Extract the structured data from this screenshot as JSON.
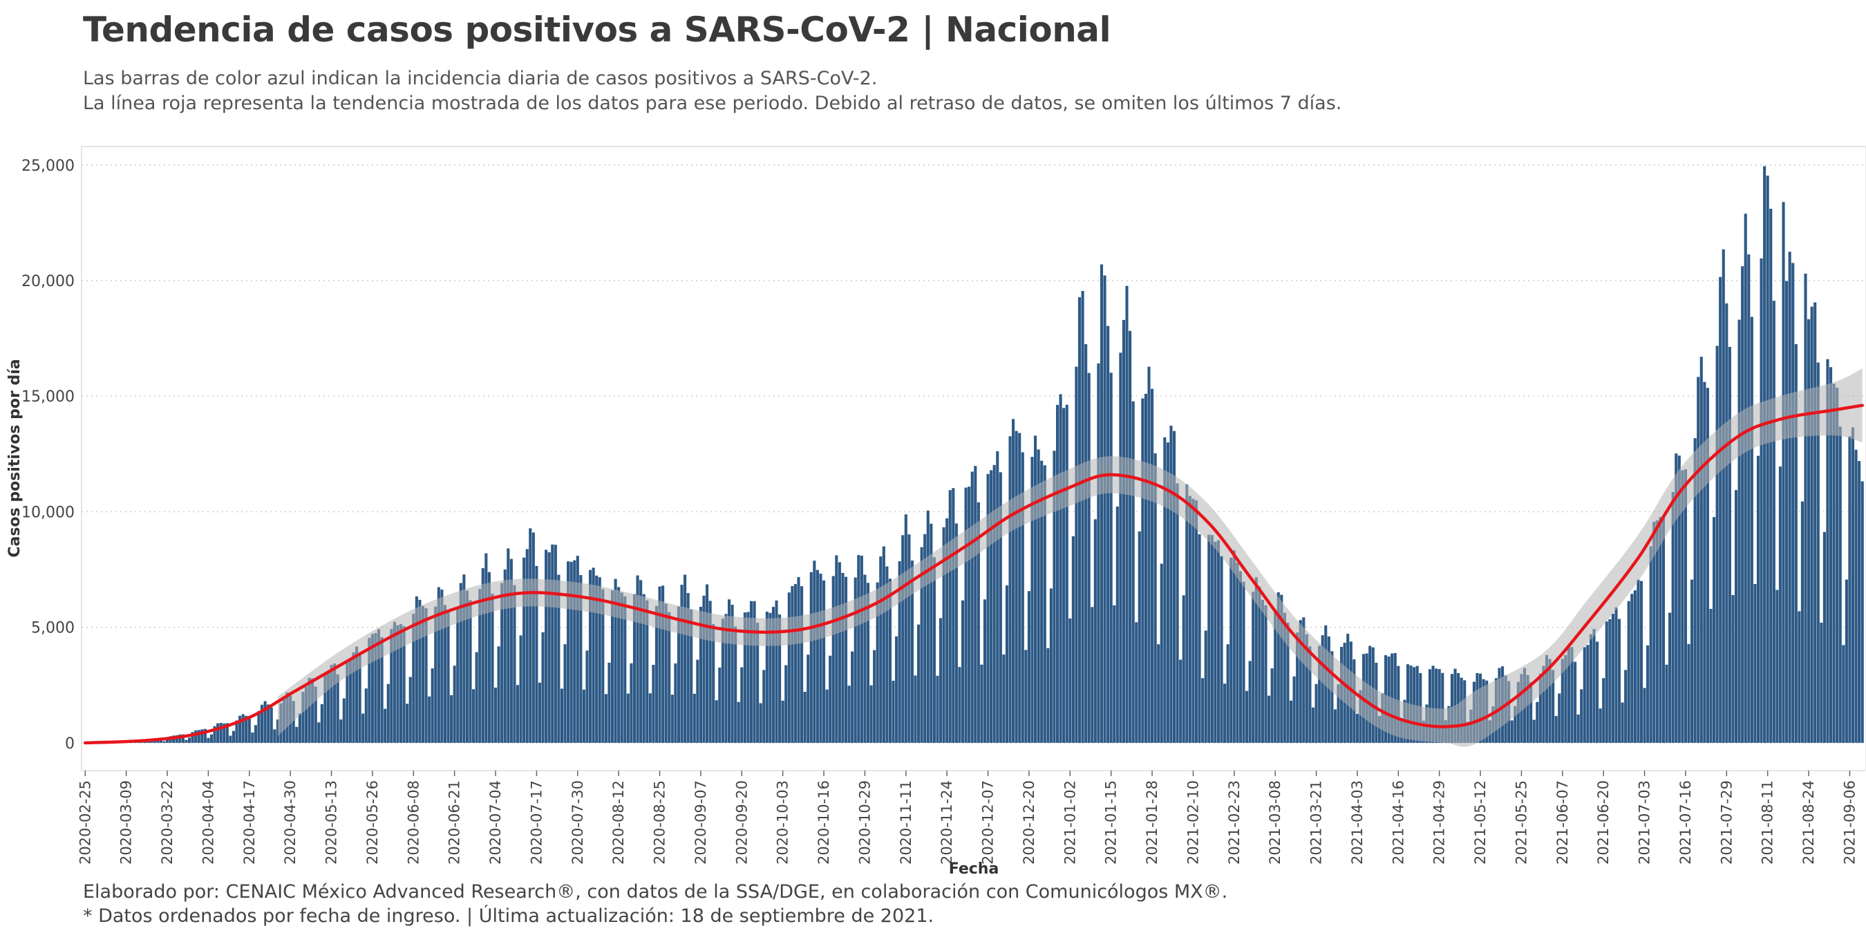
{
  "header": {
    "title": "Tendencia de casos positivos a SARS-CoV-2 | Nacional",
    "subtitle_line1": "Las barras de color azul indican la incidencia diaria de casos positivos a SARS-CoV-2.",
    "subtitle_line2": "La línea roja representa la tendencia mostrada de los datos para ese periodo. Debido al retraso de datos, se omiten los últimos 7 días."
  },
  "footer": {
    "credit": "Elaborado por: CENAIC México Advanced Research®, con datos de la SSA/DGE, en colaboración con Comunicólogos MX®.",
    "note": "* Datos ordenados por fecha de ingreso. | Última actualización: 18 de septiembre de 2021."
  },
  "colors": {
    "bars": "#2d5986",
    "trend": "#e8141b",
    "band": "#b4b4b4",
    "grid": "#cccccc",
    "panel_border": "#e6e6e6"
  },
  "chart_data": {
    "type": "bar",
    "xlabel": "Fecha",
    "ylabel": "Casos positivos por día",
    "ylim": [
      -1200,
      25800
    ],
    "yticks": [
      0,
      5000,
      10000,
      15000,
      20000,
      25000
    ],
    "ytick_labels": [
      "0",
      "5,000",
      "10,000",
      "15,000",
      "20,000",
      "25,000"
    ],
    "x_start": "2020-02-25",
    "x_end": "2021-09-10",
    "xticks": [
      "2020-02-25",
      "2020-03-09",
      "2020-03-22",
      "2020-04-04",
      "2020-04-17",
      "2020-04-30",
      "2020-05-13",
      "2020-05-26",
      "2020-06-08",
      "2020-06-21",
      "2020-07-04",
      "2020-07-17",
      "2020-07-30",
      "2020-08-12",
      "2020-08-25",
      "2020-09-07",
      "2020-09-20",
      "2020-10-03",
      "2020-10-16",
      "2020-10-29",
      "2020-11-11",
      "2020-11-24",
      "2020-12-07",
      "2020-12-20",
      "2021-01-02",
      "2021-01-15",
      "2021-01-28",
      "2021-02-10",
      "2021-02-23",
      "2021-03-08",
      "2021-03-21",
      "2021-04-03",
      "2021-04-16",
      "2021-04-29",
      "2021-05-12",
      "2021-05-25",
      "2021-06-07",
      "2021-06-20",
      "2021-07-03",
      "2021-07-16",
      "2021-07-29",
      "2021-08-11",
      "2021-08-24",
      "2021-09-06"
    ],
    "series": [
      {
        "type": "bar",
        "weekly_points": [
          [
            "2020-02-25",
            10
          ],
          [
            "2020-03-03",
            20
          ],
          [
            "2020-03-10",
            60
          ],
          [
            "2020-03-17",
            140
          ],
          [
            "2020-03-24",
            300
          ],
          [
            "2020-03-31",
            500
          ],
          [
            "2020-04-07",
            750
          ],
          [
            "2020-04-14",
            1100
          ],
          [
            "2020-04-21",
            1500
          ],
          [
            "2020-04-28",
            1900
          ],
          [
            "2020-05-05",
            2400
          ],
          [
            "2020-05-12",
            3000
          ],
          [
            "2020-05-19",
            3700
          ],
          [
            "2020-05-26",
            4400
          ],
          [
            "2020-06-02",
            5000
          ],
          [
            "2020-06-09",
            5700
          ],
          [
            "2020-06-16",
            6100
          ],
          [
            "2020-06-23",
            6500
          ],
          [
            "2020-06-30",
            7000
          ],
          [
            "2020-07-07",
            7600
          ],
          [
            "2020-07-14",
            8200
          ],
          [
            "2020-07-21",
            8300
          ],
          [
            "2020-07-28",
            7700
          ],
          [
            "2020-08-04",
            7000
          ],
          [
            "2020-08-11",
            6700
          ],
          [
            "2020-08-18",
            6400
          ],
          [
            "2020-08-25",
            6300
          ],
          [
            "2020-09-01",
            6400
          ],
          [
            "2020-09-08",
            6100
          ],
          [
            "2020-09-15",
            5700
          ],
          [
            "2020-09-22",
            5500
          ],
          [
            "2020-09-29",
            5700
          ],
          [
            "2020-10-06",
            6400
          ],
          [
            "2020-10-13",
            7300
          ],
          [
            "2020-10-20",
            7500
          ],
          [
            "2020-10-27",
            7200
          ],
          [
            "2020-11-03",
            7700
          ],
          [
            "2020-11-10",
            8400
          ],
          [
            "2020-11-17",
            9000
          ],
          [
            "2020-11-24",
            9800
          ],
          [
            "2020-12-01",
            10800
          ],
          [
            "2020-12-08",
            11800
          ],
          [
            "2020-12-15",
            12800
          ],
          [
            "2020-12-22",
            12400
          ],
          [
            "2020-12-29",
            13200
          ],
          [
            "2021-01-05",
            17500
          ],
          [
            "2021-01-12",
            18300
          ],
          [
            "2021-01-19",
            17300
          ],
          [
            "2021-01-26",
            15500
          ],
          [
            "2021-02-02",
            12800
          ],
          [
            "2021-02-09",
            10500
          ],
          [
            "2021-02-16",
            8700
          ],
          [
            "2021-02-23",
            7500
          ],
          [
            "2021-03-02",
            6700
          ],
          [
            "2021-03-09",
            5800
          ],
          [
            "2021-03-16",
            5000
          ],
          [
            "2021-03-23",
            4500
          ],
          [
            "2021-03-30",
            4200
          ],
          [
            "2021-04-06",
            4000
          ],
          [
            "2021-04-13",
            3600
          ],
          [
            "2021-04-20",
            3300
          ],
          [
            "2021-04-27",
            3100
          ],
          [
            "2021-05-04",
            2900
          ],
          [
            "2021-05-11",
            2800
          ],
          [
            "2021-05-18",
            2900
          ],
          [
            "2021-05-25",
            2900
          ],
          [
            "2021-06-01",
            3200
          ],
          [
            "2021-06-08",
            3800
          ],
          [
            "2021-06-15",
            4300
          ],
          [
            "2021-06-22",
            5100
          ],
          [
            "2021-06-29",
            6300
          ],
          [
            "2021-07-06",
            8600
          ],
          [
            "2021-07-13",
            11500
          ],
          [
            "2021-07-20",
            14500
          ],
          [
            "2021-07-27",
            18500
          ],
          [
            "2021-08-03",
            20500
          ],
          [
            "2021-08-10",
            21500
          ],
          [
            "2021-08-17",
            20500
          ],
          [
            "2021-08-24",
            18000
          ],
          [
            "2021-08-31",
            15500
          ],
          [
            "2021-09-07",
            13000
          ],
          [
            "2021-09-10",
            11500
          ]
        ],
        "weekday_factors": [
          0.55,
          0.98,
          1.05,
          1.08,
          1.03,
          0.93,
          0.32
        ],
        "notable_values": [
          [
            "2021-01-12",
            20700
          ],
          [
            "2021-08-10",
            24950
          ],
          [
            "2021-08-16",
            23400
          ],
          [
            "2021-08-23",
            20300
          ]
        ]
      },
      {
        "type": "line",
        "name": "tendencia",
        "points": [
          [
            "2020-02-25",
            0
          ],
          [
            "2020-03-15",
            100
          ],
          [
            "2020-04-01",
            400
          ],
          [
            "2020-04-17",
            1100
          ],
          [
            "2020-05-01",
            2200
          ],
          [
            "2020-05-15",
            3300
          ],
          [
            "2020-06-01",
            4600
          ],
          [
            "2020-06-15",
            5500
          ],
          [
            "2020-07-01",
            6200
          ],
          [
            "2020-07-15",
            6500
          ],
          [
            "2020-08-01",
            6300
          ],
          [
            "2020-08-15",
            5900
          ],
          [
            "2020-09-01",
            5300
          ],
          [
            "2020-09-15",
            4900
          ],
          [
            "2020-10-01",
            4800
          ],
          [
            "2020-10-15",
            5100
          ],
          [
            "2020-11-01",
            6000
          ],
          [
            "2020-11-15",
            7200
          ],
          [
            "2020-12-01",
            8600
          ],
          [
            "2020-12-15",
            9900
          ],
          [
            "2021-01-01",
            11000
          ],
          [
            "2021-01-15",
            11600
          ],
          [
            "2021-02-01",
            11000
          ],
          [
            "2021-02-15",
            9500
          ],
          [
            "2021-03-01",
            7000
          ],
          [
            "2021-03-15",
            4500
          ],
          [
            "2021-04-01",
            2300
          ],
          [
            "2021-04-15",
            1100
          ],
          [
            "2021-05-01",
            700
          ],
          [
            "2021-05-15",
            1200
          ],
          [
            "2021-06-01",
            3000
          ],
          [
            "2021-06-15",
            5200
          ],
          [
            "2021-07-01",
            8000
          ],
          [
            "2021-07-15",
            11000
          ],
          [
            "2021-08-01",
            13200
          ],
          [
            "2021-08-15",
            14000
          ],
          [
            "2021-09-01",
            14400
          ],
          [
            "2021-09-10",
            14600
          ]
        ],
        "confidence_band": [
          [
            "2020-04-26",
            300,
            2000
          ],
          [
            "2020-05-15",
            2600,
            3900
          ],
          [
            "2020-06-01",
            3900,
            5300
          ],
          [
            "2020-06-15",
            4800,
            6200
          ],
          [
            "2020-07-01",
            5600,
            6900
          ],
          [
            "2020-07-15",
            5900,
            7100
          ],
          [
            "2020-08-01",
            5700,
            6900
          ],
          [
            "2020-08-15",
            5300,
            6500
          ],
          [
            "2020-09-01",
            4700,
            5900
          ],
          [
            "2020-09-15",
            4300,
            5500
          ],
          [
            "2020-10-01",
            4200,
            5400
          ],
          [
            "2020-10-15",
            4500,
            5700
          ],
          [
            "2020-11-01",
            5400,
            6600
          ],
          [
            "2020-11-15",
            6600,
            7800
          ],
          [
            "2020-12-01",
            7900,
            9300
          ],
          [
            "2020-12-15",
            9200,
            10600
          ],
          [
            "2021-01-01",
            10200,
            11800
          ],
          [
            "2021-01-15",
            10800,
            12400
          ],
          [
            "2021-02-01",
            10200,
            11800
          ],
          [
            "2021-02-15",
            8700,
            10300
          ],
          [
            "2021-03-01",
            6200,
            7800
          ],
          [
            "2021-03-15",
            3700,
            5300
          ],
          [
            "2021-04-01",
            1500,
            3100
          ],
          [
            "2021-04-15",
            300,
            1900
          ],
          [
            "2021-05-01",
            0,
            1500
          ],
          [
            "2021-05-11",
            0,
            2300
          ],
          [
            "2021-06-01",
            2200,
            3900
          ],
          [
            "2021-06-15",
            4300,
            6200
          ],
          [
            "2021-07-01",
            7000,
            9000
          ],
          [
            "2021-07-15",
            10000,
            12000
          ],
          [
            "2021-08-01",
            12300,
            14200
          ],
          [
            "2021-08-15",
            13100,
            15000
          ],
          [
            "2021-09-01",
            13300,
            15600
          ],
          [
            "2021-09-10",
            13000,
            16200
          ]
        ]
      }
    ]
  }
}
